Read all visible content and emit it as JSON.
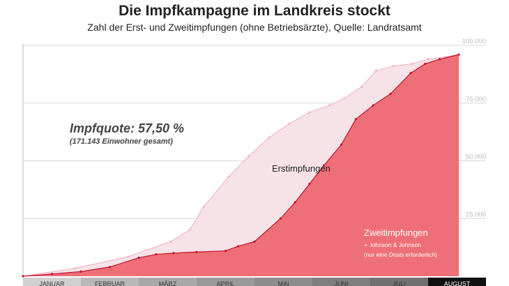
{
  "title": "Die Impfkampagne im Landkreis stockt",
  "subtitle": "Zahl der Erst- und Zweitimpfungen (ohne Betriebsärzte), Quelle: Landratsamt",
  "annotation": {
    "quote": "Impfquote: 57,50 %",
    "population": "(171.143 Einwohner gesamt)",
    "first_label": "Erstimpfungen",
    "second_label": "Zweitimpfungen",
    "second_note1": "+ Johnson & Johnson",
    "second_note2": "(nur eine Dosis erforderlich)"
  },
  "colors": {
    "first_fill": "#f7e3e7",
    "first_line": "#f2b7c0",
    "second_fill": "#ee6f77",
    "second_line": "#c8102e",
    "grid": "#d8d8d8",
    "month_band": [
      "#d0d0d0",
      "#b8b8b8",
      "#a8a8a8",
      "#9a9a9a",
      "#8c8c8c",
      "#7e7e7e",
      "#707070",
      "#111111"
    ]
  },
  "chart_data": {
    "type": "area",
    "ylim": [
      0,
      100000
    ],
    "yticks": [
      "25.000",
      "50.000",
      "75.000",
      "100.000"
    ],
    "ytick_values": [
      25000,
      50000,
      75000,
      100000
    ],
    "months": [
      "JANUAR",
      "FEBRUAR",
      "MÄRZ",
      "APRIL",
      "MAI",
      "JUNI",
      "JULI",
      "AUGUST"
    ],
    "x_range": [
      0,
      8
    ],
    "series": [
      {
        "name": "Erstimpfungen",
        "x": [
          0.0,
          0.91,
          1.82,
          2.55,
          2.88,
          3.12,
          3.55,
          3.9,
          4.25,
          4.6,
          4.95,
          5.3,
          5.55,
          5.85,
          6.1,
          6.4,
          6.72,
          7.0,
          7.3,
          7.53
        ],
        "values": [
          0,
          3500,
          8500,
          15000,
          20000,
          30000,
          43000,
          52000,
          60000,
          66000,
          71000,
          74000,
          77000,
          82000,
          89000,
          91000,
          92000,
          94000,
          95000,
          96000
        ]
      },
      {
        "name": "Zweitimpfungen",
        "x": [
          0.0,
          0.5,
          1.0,
          1.5,
          2.0,
          2.3,
          2.6,
          3.0,
          3.5,
          3.72,
          4.0,
          4.45,
          4.7,
          4.95,
          5.2,
          5.5,
          5.75,
          6.05,
          6.35,
          6.7,
          6.95,
          7.2,
          7.53
        ],
        "values": [
          0,
          1000,
          2000,
          4000,
          8000,
          9500,
          10000,
          10500,
          11000,
          13000,
          15000,
          25000,
          32000,
          40000,
          48000,
          57000,
          68000,
          74000,
          79000,
          88000,
          92000,
          94000,
          96000
        ]
      }
    ]
  }
}
